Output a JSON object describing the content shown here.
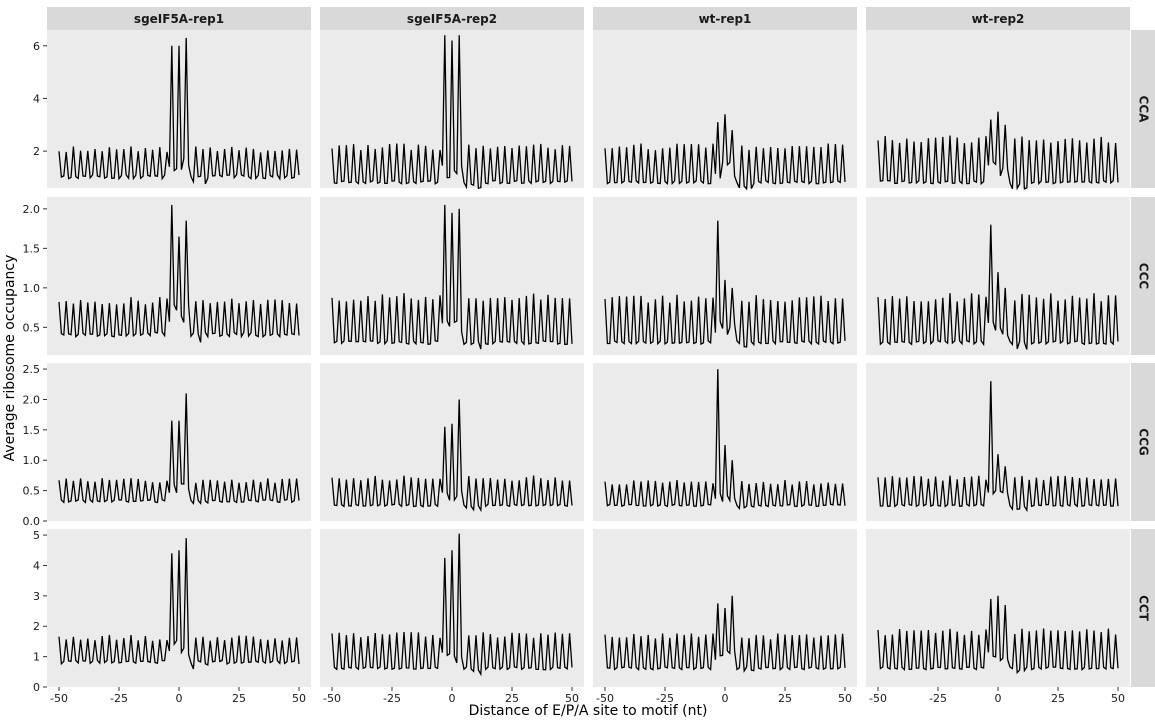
{
  "chart_data": {
    "type": "line",
    "xlabel": "Distance of E/P/A site to motif (nt)",
    "ylabel": "Average ribosome occupancy",
    "columns": [
      "sgeIF5A-rep1",
      "sgeIF5A-rep2",
      "wt-rep1",
      "wt-rep2"
    ],
    "rows": [
      "CCA",
      "CCC",
      "CCG",
      "CCT"
    ],
    "xlim": [
      -50,
      50
    ],
    "xticks": [
      -50,
      -25,
      0,
      25,
      50
    ],
    "x_tick_labels": [
      "-50",
      "-25",
      "0",
      "25",
      "50"
    ],
    "panel_ylim": [
      [
        0.6,
        6.6
      ],
      [
        0.15,
        2.15
      ],
      [
        0.0,
        2.6
      ],
      [
        0.0,
        5.2
      ]
    ],
    "panel_yticks": [
      {
        "values": [
          2,
          4,
          6
        ],
        "labels": [
          "2",
          "4",
          "6"
        ]
      },
      {
        "values": [
          0.5,
          1.0,
          1.5,
          2.0
        ],
        "labels": [
          "0.5",
          "1.0",
          "1.5",
          "2.0"
        ]
      },
      {
        "values": [
          0.0,
          0.5,
          1.0,
          1.5,
          2.0,
          2.5
        ],
        "labels": [
          "0.0",
          "0.5",
          "1.0",
          "1.5",
          "2.0",
          "2.5"
        ]
      },
      {
        "values": [
          0,
          1,
          2,
          3,
          4,
          5
        ],
        "labels": [
          "0",
          "1",
          "2",
          "3",
          "4",
          "5"
        ]
      }
    ],
    "x_range_per_panel": [
      -50,
      50
    ],
    "panels": [
      {
        "row": "CCA",
        "col": "sgeIF5A-rep1",
        "baseline": 1.0,
        "peak": 2.1,
        "center": [
          6.0,
          6.0,
          6.3
        ],
        "color": "#000000"
      },
      {
        "row": "CCA",
        "col": "sgeIF5A-rep2",
        "baseline": 0.8,
        "peak": 2.2,
        "center": [
          6.4,
          6.2,
          6.4
        ],
        "color": "#000000"
      },
      {
        "row": "CCA",
        "col": "wt-rep1",
        "baseline": 0.8,
        "peak": 2.2,
        "center": [
          3.1,
          3.4,
          2.8
        ],
        "color": "#000000"
      },
      {
        "row": "CCA",
        "col": "wt-rep2",
        "baseline": 0.8,
        "peak": 2.5,
        "center": [
          3.2,
          3.5,
          3.0
        ],
        "color": "#000000"
      },
      {
        "row": "CCC",
        "col": "sgeIF5A-rep1",
        "baseline": 0.4,
        "peak": 0.85,
        "center": [
          2.05,
          1.65,
          1.85
        ],
        "color": "#000000"
      },
      {
        "row": "CCC",
        "col": "sgeIF5A-rep2",
        "baseline": 0.3,
        "peak": 0.9,
        "center": [
          2.05,
          1.95,
          2.0
        ],
        "color": "#000000"
      },
      {
        "row": "CCC",
        "col": "wt-rep1",
        "baseline": 0.3,
        "peak": 0.88,
        "center": [
          1.85,
          1.1,
          1.0
        ],
        "color": "#000000"
      },
      {
        "row": "CCC",
        "col": "wt-rep2",
        "baseline": 0.3,
        "peak": 0.9,
        "center": [
          1.8,
          1.2,
          1.0
        ],
        "color": "#000000"
      },
      {
        "row": "CCG",
        "col": "sgeIF5A-rep1",
        "baseline": 0.32,
        "peak": 0.68,
        "center": [
          1.65,
          1.65,
          2.1
        ],
        "color": "#000000"
      },
      {
        "row": "CCG",
        "col": "sgeIF5A-rep2",
        "baseline": 0.25,
        "peak": 0.72,
        "center": [
          1.55,
          1.6,
          2.0
        ],
        "color": "#000000"
      },
      {
        "row": "CCG",
        "col": "wt-rep1",
        "baseline": 0.25,
        "peak": 0.65,
        "center": [
          2.5,
          1.25,
          1.0
        ],
        "color": "#000000"
      },
      {
        "row": "CCG",
        "col": "wt-rep2",
        "baseline": 0.25,
        "peak": 0.72,
        "center": [
          2.3,
          1.1,
          0.9
        ],
        "color": "#000000"
      },
      {
        "row": "CCT",
        "col": "sgeIF5A-rep1",
        "baseline": 0.8,
        "peak": 1.65,
        "center": [
          4.4,
          4.5,
          4.9
        ],
        "color": "#000000"
      },
      {
        "row": "CCT",
        "col": "sgeIF5A-rep2",
        "baseline": 0.6,
        "peak": 1.75,
        "center": [
          4.25,
          4.5,
          5.05
        ],
        "color": "#000000"
      },
      {
        "row": "CCT",
        "col": "wt-rep1",
        "baseline": 0.6,
        "peak": 1.7,
        "center": [
          2.75,
          2.6,
          3.0
        ],
        "color": "#000000"
      },
      {
        "row": "CCT",
        "col": "wt-rep2",
        "baseline": 0.6,
        "peak": 1.85,
        "center": [
          2.9,
          3.0,
          2.7
        ],
        "color": "#000000"
      }
    ],
    "grid": false,
    "panel_background": "#ebebeb",
    "strip_background": "#d9d9d9",
    "line_color": "#000000"
  }
}
